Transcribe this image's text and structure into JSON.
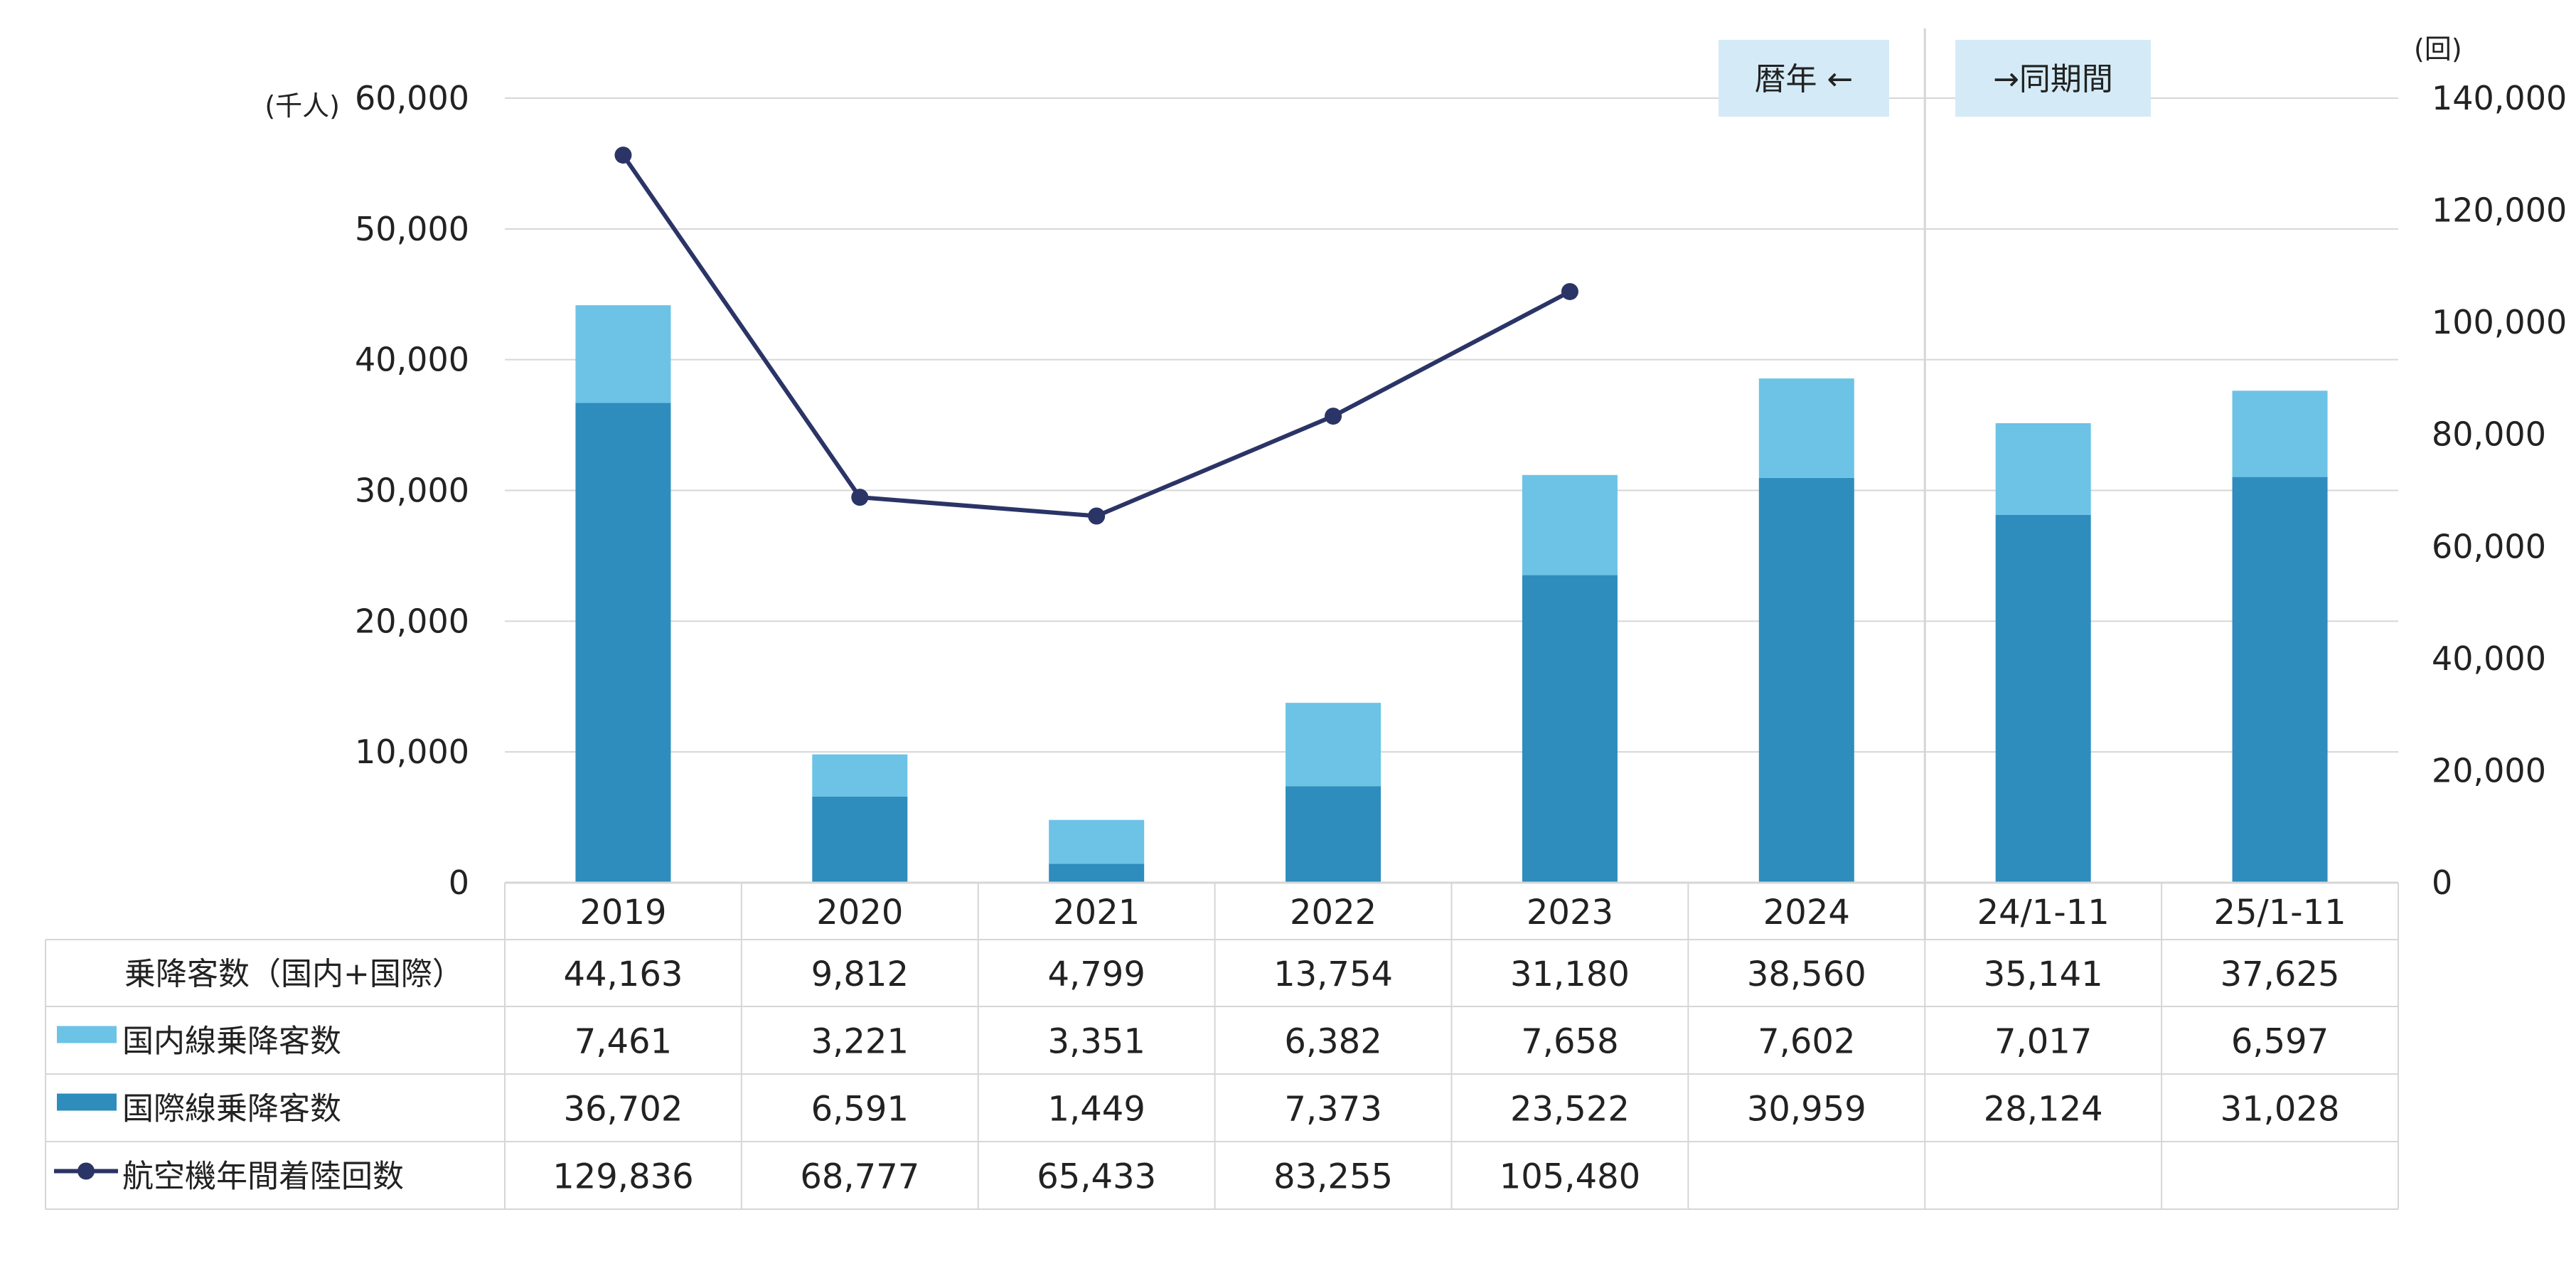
{
  "chart_data": {
    "type": "bar",
    "stacked": true,
    "categories": [
      "2019",
      "2020",
      "2021",
      "2022",
      "2023",
      "2024",
      "24/1-11",
      "25/1-11"
    ],
    "y_left": {
      "unit_label": "(千人)",
      "ylim": [
        0,
        60000
      ],
      "ticks": [
        "0",
        "10,000",
        "20,000",
        "30,000",
        "40,000",
        "50,000",
        "60,000"
      ]
    },
    "y_right": {
      "unit_label": "(回)",
      "ylim": [
        0,
        140000
      ],
      "ticks": [
        "0",
        "20,000",
        "40,000",
        "60,000",
        "80,000",
        "100,000",
        "120,000",
        "140,000"
      ]
    },
    "period_labels": {
      "calendar": "暦年 ←",
      "same_period": "→同期間"
    },
    "total": {
      "name": "乗降客数（国内+国際）",
      "values": [
        44163,
        9812,
        4799,
        13754,
        31180,
        38560,
        35141,
        37625
      ],
      "display": [
        "44,163",
        "9,812",
        "4,799",
        "13,754",
        "31,180",
        "38,560",
        "35,141",
        "37,625"
      ]
    },
    "series": [
      {
        "name": "国内線乗降客数",
        "color": "#6cc3e6",
        "axis": "left",
        "kind": "bar",
        "values": [
          7461,
          3221,
          3351,
          6382,
          7658,
          7602,
          7017,
          6597
        ],
        "display": [
          "7,461",
          "3,221",
          "3,351",
          "6,382",
          "7,658",
          "7,602",
          "7,017",
          "6,597"
        ]
      },
      {
        "name": "国際線乗降客数",
        "color": "#2e8dbc",
        "axis": "left",
        "kind": "bar",
        "values": [
          36702,
          6591,
          1449,
          7373,
          23522,
          30959,
          28124,
          31028
        ],
        "display": [
          "36,702",
          "6,591",
          "1,449",
          "7,373",
          "23,522",
          "30,959",
          "28,124",
          "31,028"
        ]
      },
      {
        "name": "航空機年間着陸回数",
        "color": "#2b3466",
        "axis": "right",
        "kind": "line",
        "values": [
          129836,
          68777,
          65433,
          83255,
          105480,
          null,
          null,
          null
        ],
        "display": [
          "129,836",
          "68,777",
          "65,433",
          "83,255",
          "105,480",
          "",
          "",
          ""
        ]
      }
    ],
    "grid": true,
    "legend": "table-below"
  }
}
